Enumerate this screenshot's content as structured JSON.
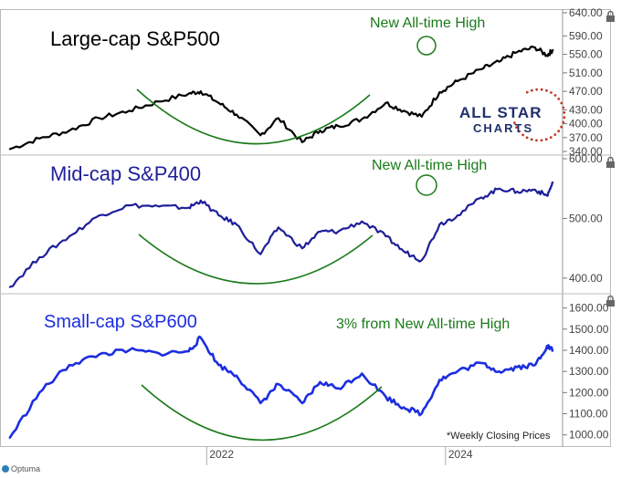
{
  "logo": {
    "line1": "ALL STAR",
    "line2": "CHARTS",
    "brand_color": "#20306b",
    "star_color": "#c0392b"
  },
  "footer": {
    "brand": "Optuma",
    "note": "*Weekly Closing Prices"
  },
  "colors": {
    "large": "#000000",
    "mid": "#1f1f9a",
    "small": "#1c2ee0",
    "annotation": "#1a7a1a",
    "axis": "#555555"
  },
  "chart_data": [
    {
      "type": "line",
      "title": "Large-cap S&P500",
      "annotation": "New All-time High",
      "ylim": [
        340,
        640
      ],
      "yticks": [
        {
          "v": 640,
          "label": "640.00"
        },
        {
          "v": 590,
          "label": "590.00"
        },
        {
          "v": 550,
          "label": "550.00"
        },
        {
          "v": 510,
          "label": "510.00"
        },
        {
          "v": 470,
          "label": "470.00"
        },
        {
          "v": 430,
          "label": "430.00"
        },
        {
          "v": 400,
          "label": "400.00"
        },
        {
          "v": 370,
          "label": "370.00"
        },
        {
          "v": 340,
          "label": "340.00"
        }
      ],
      "x": [
        2020.35,
        2020.6,
        2020.85,
        2021.1,
        2021.35,
        2021.6,
        2021.85,
        2021.95,
        2022.1,
        2022.25,
        2022.45,
        2022.6,
        2022.8,
        2022.95,
        2023.1,
        2023.3,
        2023.5,
        2023.65,
        2023.8,
        2023.95,
        2024.1,
        2024.3,
        2024.45,
        2024.6,
        2024.75,
        2024.85,
        2024.9
      ],
      "values": [
        345,
        368,
        385,
        412,
        428,
        448,
        465,
        470,
        445,
        420,
        375,
        412,
        360,
        385,
        395,
        410,
        445,
        428,
        415,
        468,
        492,
        518,
        534,
        555,
        565,
        548,
        560
      ]
    },
    {
      "type": "line",
      "title": "Mid-cap S&P400",
      "annotation": "New All-time High",
      "ylim": [
        380,
        600
      ],
      "yticks": [
        {
          "v": 600,
          "label": "600.00"
        },
        {
          "v": 500,
          "label": "500.00"
        },
        {
          "v": 400,
          "label": "400.00"
        }
      ],
      "x": [
        2020.35,
        2020.6,
        2020.85,
        2021.1,
        2021.35,
        2021.6,
        2021.85,
        2021.95,
        2022.1,
        2022.25,
        2022.45,
        2022.6,
        2022.8,
        2022.95,
        2023.1,
        2023.3,
        2023.5,
        2023.65,
        2023.8,
        2023.95,
        2024.1,
        2024.3,
        2024.45,
        2024.6,
        2024.75,
        2024.85,
        2024.9
      ],
      "values": [
        385,
        435,
        470,
        505,
        522,
        520,
        518,
        530,
        505,
        490,
        440,
        485,
        450,
        478,
        478,
        495,
        470,
        445,
        430,
        490,
        505,
        535,
        550,
        545,
        548,
        538,
        560
      ]
    },
    {
      "type": "line",
      "title": "Small-cap S&P600",
      "annotation": "3% from New All-time High",
      "ylim": [
        960,
        1650
      ],
      "yticks": [
        {
          "v": 1600,
          "label": "1600.00"
        },
        {
          "v": 1500,
          "label": "1500.00"
        },
        {
          "v": 1400,
          "label": "1400.00"
        },
        {
          "v": 1300,
          "label": "1300.00"
        },
        {
          "v": 1200,
          "label": "1200.00"
        },
        {
          "v": 1100,
          "label": "1100.00"
        },
        {
          "v": 1000,
          "label": "1000.00"
        }
      ],
      "x": [
        2020.35,
        2020.6,
        2020.85,
        2021.1,
        2021.35,
        2021.6,
        2021.85,
        2021.95,
        2022.1,
        2022.25,
        2022.45,
        2022.6,
        2022.8,
        2022.95,
        2023.1,
        2023.3,
        2023.5,
        2023.65,
        2023.8,
        2023.95,
        2024.1,
        2024.3,
        2024.45,
        2024.6,
        2024.75,
        2024.85,
        2024.9
      ],
      "values": [
        985,
        1200,
        1330,
        1380,
        1400,
        1385,
        1395,
        1460,
        1330,
        1280,
        1150,
        1240,
        1150,
        1250,
        1220,
        1290,
        1180,
        1130,
        1100,
        1260,
        1300,
        1340,
        1300,
        1320,
        1330,
        1420,
        1400
      ]
    }
  ],
  "xaxis": {
    "xlim": [
      2020.3,
      2024.98
    ],
    "ticks": [
      {
        "v": 2022.0,
        "label": "2022"
      },
      {
        "v": 2024.0,
        "label": "2024"
      }
    ]
  }
}
